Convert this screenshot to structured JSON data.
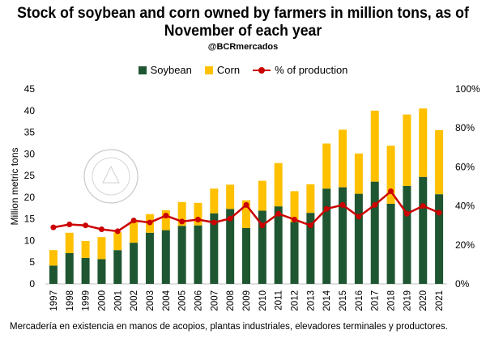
{
  "title": "Stock of soybean and corn owned by farmers in million tons, as of November of each year",
  "subtitle": "@BCRmercados",
  "footnote": "Mercadería en existencia en manos de acopios, plantas industriales, elevadores terminales y productores.",
  "watermark": "BOLSA DE COMERCIO DE ROSARIO",
  "colors": {
    "soybean": "#1e5631",
    "corn": "#ffc000",
    "percent": "#cc0000"
  },
  "chart_data": {
    "type": "bar",
    "stacked": true,
    "categories": [
      "1997",
      "1998",
      "1999",
      "2000",
      "2001",
      "2002",
      "2003",
      "2004",
      "2005",
      "2006",
      "2007",
      "2008",
      "2009",
      "2010",
      "2011",
      "2012",
      "2013",
      "2014",
      "2015",
      "2016",
      "2017",
      "2018",
      "2019",
      "2020",
      "2021"
    ],
    "series": [
      {
        "name": "Soybean",
        "values": [
          4.2,
          7.1,
          6.0,
          5.7,
          7.8,
          9.5,
          11.8,
          12.4,
          13.4,
          13.5,
          16.3,
          17.3,
          12.9,
          16.9,
          17.9,
          14.3,
          16.4,
          22.0,
          22.3,
          20.8,
          23.6,
          18.5,
          22.6,
          24.7,
          20.7
        ]
      },
      {
        "name": "Corn",
        "values": [
          3.6,
          4.7,
          3.9,
          5.1,
          4.1,
          4.9,
          4.3,
          4.6,
          5.5,
          5.2,
          5.7,
          5.6,
          6.4,
          6.9,
          10.0,
          7.1,
          6.6,
          10.4,
          13.3,
          9.3,
          16.4,
          13.4,
          16.5,
          15.8,
          14.8
        ]
      },
      {
        "name": "% of production",
        "axis": "right",
        "type": "line",
        "values": [
          29,
          30.5,
          30,
          28,
          27,
          32.5,
          31.5,
          35,
          32,
          33,
          31.5,
          33.5,
          40.5,
          30,
          36,
          33,
          30,
          38.5,
          40.5,
          34.5,
          40.5,
          47.5,
          36,
          40,
          36.5
        ]
      }
    ],
    "ylabel": "Million metric tons",
    "ylim": [
      0,
      45
    ],
    "yticks": [
      "0",
      "5",
      "10",
      "15",
      "20",
      "25",
      "30",
      "35",
      "40",
      "45"
    ],
    "y2lim": [
      0,
      100
    ],
    "y2ticks": [
      "0%",
      "20%",
      "40%",
      "60%",
      "80%",
      "100%"
    ],
    "legend": "top-center",
    "grid": false
  }
}
